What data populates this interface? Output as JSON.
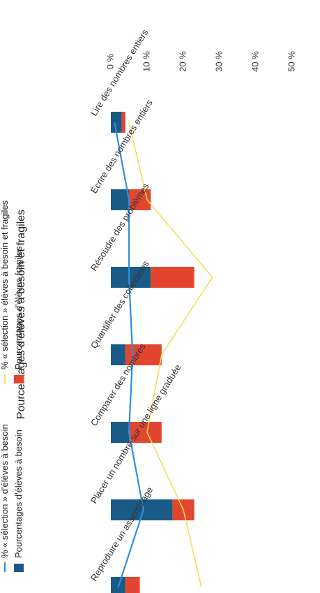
{
  "chart_data": {
    "type": "bar",
    "title": "Pourcentages d'élèves à besoin et fragiles",
    "categories": [
      "Lire des nombres entiers",
      "Écrire des nombres entiers",
      "Résoudre des problèmes",
      "Quantifier des collections",
      "Comparer des nombres",
      "Placer un nombre sur une ligne graduée",
      "Reproduire un assemblage"
    ],
    "y_ticks": [
      "0 %",
      "10 %",
      "20 %",
      "30 %",
      "40 %",
      "50 %"
    ],
    "ylim": [
      0,
      50
    ],
    "stacked": true,
    "series": [
      {
        "name": "Pourcentages d'élèves à besoin",
        "kind": "bar",
        "color": "#1a5a86",
        "values": [
          3,
          5,
          11,
          4,
          5,
          17,
          4
        ]
      },
      {
        "name": "Pourcentages d'élèves fragiles",
        "kind": "bar",
        "color": "#e3462f",
        "values": [
          1,
          6,
          12,
          10,
          9,
          6,
          4
        ]
      },
      {
        "name": "% « sélection » d'élèves à besoin",
        "kind": "line",
        "color": "#2c8fe0",
        "values": [
          1,
          5,
          5,
          6,
          5,
          9,
          2
        ]
      },
      {
        "name": "% « sélection » élèves à besoin et fragiles",
        "kind": "line",
        "color": "#f3de5a",
        "values": [
          5,
          10,
          28,
          14,
          10,
          20,
          25
        ]
      }
    ],
    "legend_position": "bottom"
  }
}
